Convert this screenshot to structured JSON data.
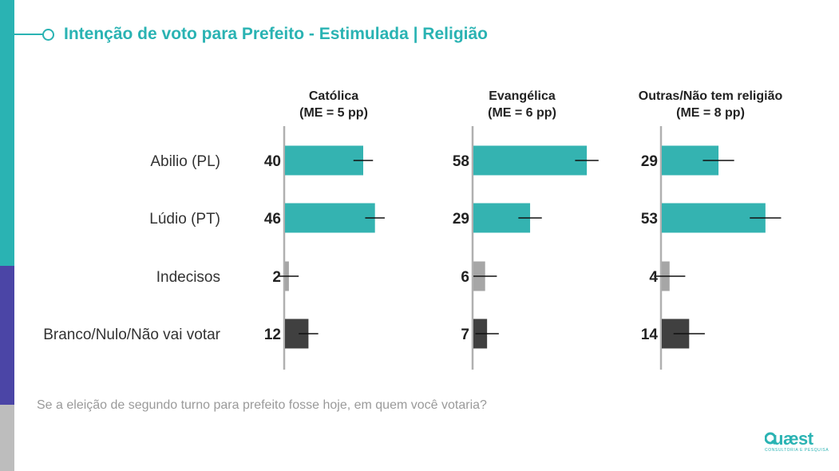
{
  "header": {
    "title": "Intenção de voto para Prefeito - Estimulada | Religião"
  },
  "footer": {
    "question": "Se a eleição de segundo turno para prefeito fosse hoje, em quem você votaria?"
  },
  "logo": {
    "word": "uæst",
    "subtitle": "CONSULTORIA E PESQUISA"
  },
  "colors": {
    "accent": "#2ab3b3",
    "bar_teal": "#34b3b1",
    "bar_gray": "#a6a6a6",
    "bar_dark": "#404040",
    "side_purple": "#4b45a6"
  },
  "chart_data": {
    "type": "bar",
    "orientation": "horizontal",
    "categories": [
      "Abilio (PL)",
      "Lúdio (PT)",
      "Indecisos",
      "Branco/Nulo/Não vai votar"
    ],
    "panels": [
      {
        "title": "Católica",
        "subtitle": "(ME = 5 pp)",
        "moe": 5,
        "values": [
          40,
          46,
          2,
          12
        ]
      },
      {
        "title": "Evangélica",
        "subtitle": "(ME = 6 pp)",
        "moe": 6,
        "values": [
          58,
          29,
          6,
          7
        ]
      },
      {
        "title": "Outras/Não tem religião",
        "subtitle": "(ME = 8 pp)",
        "moe": 8,
        "values": [
          29,
          53,
          4,
          14
        ]
      }
    ],
    "bar_colors": [
      "#34b3b1",
      "#34b3b1",
      "#a6a6a6",
      "#404040"
    ],
    "error_bars": true,
    "data_labels": true
  }
}
